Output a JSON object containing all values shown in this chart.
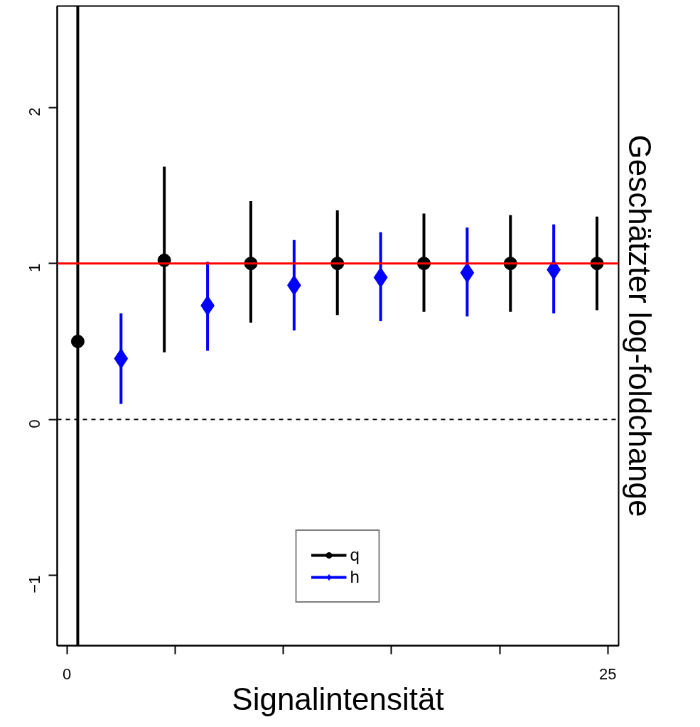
{
  "chart_data": {
    "type": "scatter",
    "xlabel": "Signalintensität",
    "ylabel": "Geschätzter log-foldchange",
    "xlim": [
      -0.45,
      25.5
    ],
    "ylim": [
      -1.45,
      2.65
    ],
    "xticks": [
      0,
      {
        "value": 5,
        "label": null
      },
      {
        "value": 10,
        "label": null
      },
      {
        "value": 15,
        "label": null
      },
      {
        "value": 20,
        "label": null
      },
      25
    ],
    "yticks": [
      {
        "value": -1,
        "label": "−1"
      },
      0,
      1,
      2
    ],
    "series": [
      {
        "name": "q",
        "color": "#000000",
        "marker": "circle",
        "x": [
          0.5,
          4.5,
          8.5,
          12.5,
          16.5,
          20.5,
          24.5
        ],
        "values": [
          0.5,
          1.02,
          1.0,
          1.0,
          1.0,
          1.0,
          1.0
        ],
        "errors": [
          [
            -1.45,
            2.65
          ],
          [
            0.43,
            1.62
          ],
          [
            0.62,
            1.4
          ],
          [
            0.67,
            1.34
          ],
          [
            0.69,
            1.32
          ],
          [
            0.69,
            1.31
          ],
          [
            0.7,
            1.3
          ]
        ]
      },
      {
        "name": "h",
        "color": "#0000ff",
        "marker": "diamond",
        "x": [
          2.5,
          6.5,
          10.5,
          14.5,
          18.5,
          22.5
        ],
        "values": [
          0.39,
          0.73,
          0.86,
          0.91,
          0.94,
          0.96
        ],
        "errors": [
          [
            0.1,
            0.68
          ],
          [
            0.44,
            1.01
          ],
          [
            0.57,
            1.15
          ],
          [
            0.63,
            1.2
          ],
          [
            0.66,
            1.23
          ],
          [
            0.68,
            1.25
          ]
        ]
      }
    ],
    "ref_lines": [
      {
        "axis": "y",
        "value": 1,
        "color": "#ff0000",
        "line_style": "solid"
      },
      {
        "axis": "y",
        "value": 0,
        "color": "#000000",
        "line_style": "dashed"
      }
    ],
    "legend": "bottom",
    "grid": false
  }
}
